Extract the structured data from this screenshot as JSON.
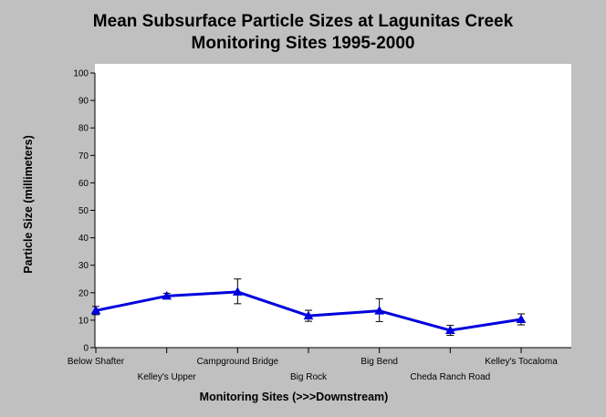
{
  "chart_data": {
    "type": "line",
    "title": [
      "Mean Subsurface Particle Sizes at Lagunitas Creek",
      "Monitoring Sites 1995-2000"
    ],
    "xlabel": "Monitoring Sites (>>>Downstream)",
    "ylabel": "Particle Size (millimeters)",
    "ylim": [
      0,
      100
    ],
    "yticks": [
      0,
      10,
      20,
      30,
      40,
      50,
      60,
      70,
      80,
      90,
      100
    ],
    "categories": [
      "Below Shafter",
      "Kelley's Upper",
      "Campground Bridge",
      "Big Rock",
      "Big Bend",
      "Cheda Ranch Road",
      "Kelley's Tocaloma"
    ],
    "series": [
      {
        "values": [
          13.5,
          18.8,
          20.3,
          11.6,
          13.4,
          6.3,
          10.3
        ],
        "error_low": [
          12.0,
          17.8,
          16.0,
          9.6,
          9.5,
          4.5,
          8.3
        ],
        "error_high": [
          15.0,
          19.8,
          25.0,
          13.6,
          17.8,
          8.1,
          12.3
        ]
      }
    ],
    "colors": {
      "line": "#0000dd",
      "background": "#c0c0c0",
      "plot_area": "#ffffff"
    },
    "grid": false
  }
}
